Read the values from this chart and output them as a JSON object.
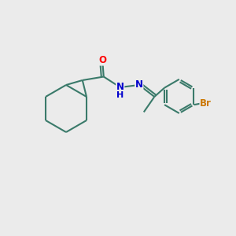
{
  "bg_color": "#ebebeb",
  "bond_color": "#3a7a6a",
  "bond_width": 1.5,
  "atom_colors": {
    "O": "#ff0000",
    "N": "#0000cc",
    "Br": "#cc7700",
    "H": "#0000cc"
  },
  "font_size_atoms": 8.5,
  "figsize": [
    3.0,
    3.0
  ],
  "dpi": 100
}
